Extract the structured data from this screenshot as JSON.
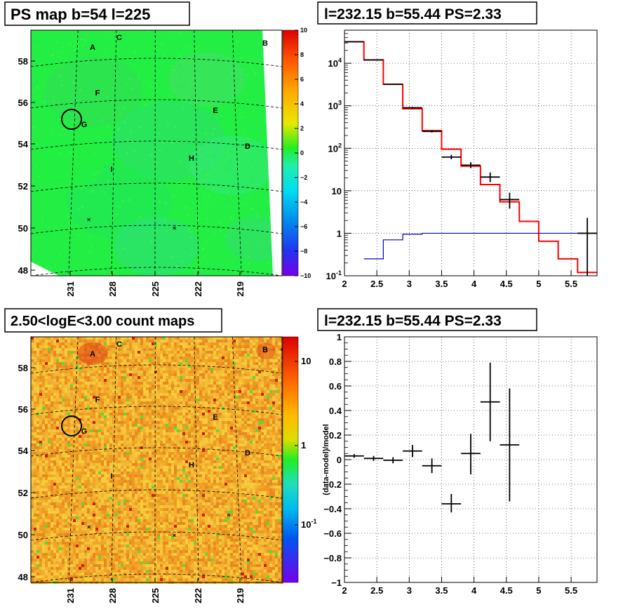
{
  "colors": {
    "data": "#000000",
    "model": "#ff0000",
    "bkg_model": "#0000cc",
    "map_bg": "#22ee44",
    "count_bg": "#f2b233"
  },
  "chart_data": [
    {
      "id": "ps-map",
      "type": "heatmap",
      "title": "PS map b=54 l=225",
      "x_ticks": [
        "231",
        "228",
        "225",
        "222",
        "219"
      ],
      "y_ticks": [
        "48",
        "50",
        "52",
        "54",
        "56",
        "58"
      ],
      "colorbar": {
        "range": [
          -10,
          10
        ],
        "ticks": [
          "10",
          "8",
          "6",
          "4",
          "2",
          "0",
          "−2",
          "−4",
          "−6",
          "−8",
          "−10"
        ]
      },
      "source_labels": [
        "A",
        "B",
        "C",
        "D",
        "E",
        "F",
        "G",
        "H",
        "I"
      ],
      "circle_label": "G"
    },
    {
      "id": "spectrum",
      "type": "line",
      "title": "l=232.15 b=55.44 PS=2.33",
      "log_y": true,
      "xlim": [
        2,
        5.9
      ],
      "ylim": [
        0.1,
        60000
      ],
      "grid": true,
      "x_ticks": [
        "2",
        "2.5",
        "3",
        "3.5",
        "4",
        "4.5",
        "5",
        "5.5"
      ],
      "y_ticks": [
        "10^-1",
        "1",
        "10",
        "10^2",
        "10^3",
        "10^4"
      ],
      "series": [
        {
          "kind": "data",
          "points": [
            {
              "x": 2.15,
              "xerr": 0.15,
              "y": 32000,
              "ylo": 31500,
              "yhi": 32500
            },
            {
              "x": 2.45,
              "xerr": 0.15,
              "y": 12000,
              "ylo": 11800,
              "yhi": 12200
            },
            {
              "x": 2.75,
              "xerr": 0.15,
              "y": 3200,
              "ylo": 3100,
              "yhi": 3300
            },
            {
              "x": 3.05,
              "xerr": 0.15,
              "y": 900,
              "ylo": 860,
              "yhi": 940
            },
            {
              "x": 3.35,
              "xerr": 0.15,
              "y": 250,
              "ylo": 235,
              "yhi": 265
            },
            {
              "x": 3.65,
              "xerr": 0.15,
              "y": 62,
              "ylo": 55,
              "yhi": 70
            },
            {
              "x": 3.95,
              "xerr": 0.15,
              "y": 40,
              "ylo": 34,
              "yhi": 47
            },
            {
              "x": 4.25,
              "xerr": 0.15,
              "y": 21,
              "ylo": 16,
              "yhi": 27
            },
            {
              "x": 4.55,
              "xerr": 0.15,
              "y": 6.2,
              "ylo": 3.8,
              "yhi": 9
            },
            {
              "x": 5.75,
              "xerr": 0.15,
              "y": 1,
              "ylo": 0.1,
              "yhi": 2.3
            }
          ]
        },
        {
          "kind": "model-step",
          "edges": [
            2,
            2.3,
            2.6,
            2.9,
            3.2,
            3.5,
            3.8,
            4.1,
            4.4,
            4.7,
            5.0,
            5.3,
            5.6,
            5.9
          ],
          "values": [
            32000,
            12000,
            3200,
            850,
            260,
            95,
            38,
            14,
            5.5,
            1.9,
            0.65,
            0.25,
            0.12
          ]
        },
        {
          "kind": "bkg-step",
          "edges": [
            2.3,
            2.6,
            2.9,
            3.2,
            5.9
          ],
          "values": [
            0.25,
            0.7,
            0.95,
            1.0
          ]
        }
      ]
    },
    {
      "id": "count-map",
      "type": "heatmap",
      "title": "2.50<logE<3.00 count maps",
      "x_ticks": [
        "231",
        "228",
        "225",
        "222",
        "219"
      ],
      "y_ticks": [
        "48",
        "50",
        "52",
        "54",
        "56",
        "58"
      ],
      "colorbar": {
        "log": true,
        "ticks": [
          "10",
          "1",
          "10^-1"
        ]
      },
      "source_labels": [
        "A",
        "B",
        "C",
        "D",
        "E",
        "F",
        "G",
        "H",
        "I"
      ],
      "circle_label": "G"
    },
    {
      "id": "residuals",
      "type": "scatter",
      "title": "l=232.15 b=55.44 PS=2.33",
      "ylabel": "(data-model)/model",
      "xlim": [
        2,
        5.9
      ],
      "ylim": [
        -1,
        1
      ],
      "grid": true,
      "x_ticks": [
        "2",
        "2.5",
        "3",
        "3.5",
        "4",
        "4.5",
        "5",
        "5.5"
      ],
      "y_ticks": [
        "−1",
        "−0.8",
        "−0.6",
        "−0.4",
        "−0.2",
        "0",
        "0.2",
        "0.4",
        "0.6",
        "0.8",
        "1"
      ],
      "points": [
        {
          "x": 2.15,
          "xerr": 0.15,
          "y": 0.03,
          "ylo": 0.015,
          "yhi": 0.045
        },
        {
          "x": 2.45,
          "xerr": 0.15,
          "y": 0.01,
          "ylo": -0.01,
          "yhi": 0.03
        },
        {
          "x": 2.75,
          "xerr": 0.15,
          "y": -0.005,
          "ylo": -0.03,
          "yhi": 0.02
        },
        {
          "x": 3.05,
          "xerr": 0.15,
          "y": 0.07,
          "ylo": 0.02,
          "yhi": 0.12
        },
        {
          "x": 3.35,
          "xerr": 0.15,
          "y": -0.05,
          "ylo": -0.11,
          "yhi": 0.01
        },
        {
          "x": 3.65,
          "xerr": 0.15,
          "y": -0.36,
          "ylo": -0.43,
          "yhi": -0.28
        },
        {
          "x": 3.95,
          "xerr": 0.15,
          "y": 0.05,
          "ylo": -0.12,
          "yhi": 0.21
        },
        {
          "x": 4.25,
          "xerr": 0.15,
          "y": 0.47,
          "ylo": 0.15,
          "yhi": 0.79
        },
        {
          "x": 4.55,
          "xerr": 0.15,
          "y": 0.12,
          "ylo": -0.34,
          "yhi": 0.58
        }
      ]
    }
  ]
}
